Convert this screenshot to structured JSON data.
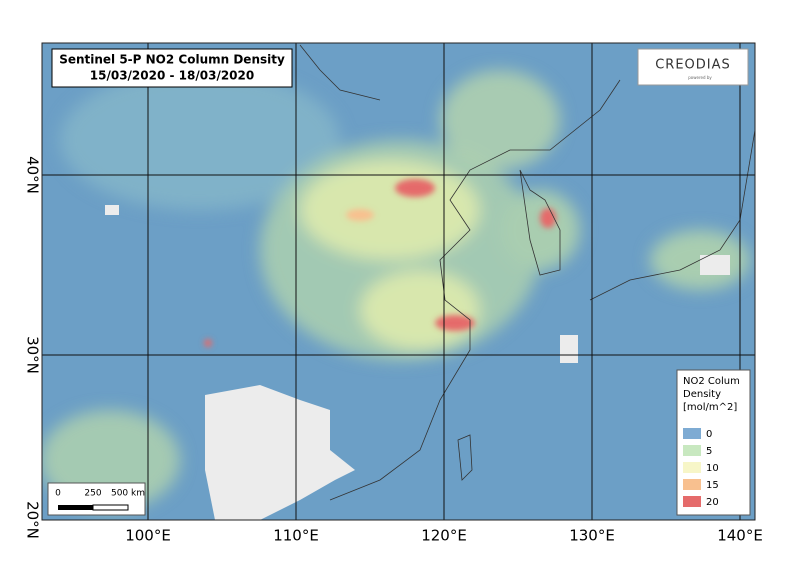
{
  "title": {
    "line1": "Sentinel 5-P NO2 Column Density",
    "line2": "15/03/2020 - 18/03/2020"
  },
  "logo": {
    "name": "CREODIAS",
    "tagline": "powered by"
  },
  "legend": {
    "title": [
      "NO2 Colum",
      "Density",
      "[mol/m^2]"
    ],
    "items": [
      {
        "label": 0,
        "color": "#7eabd3"
      },
      {
        "label": 5,
        "color": "#c8e8c0"
      },
      {
        "label": 10,
        "color": "#f7f6c8"
      },
      {
        "label": 15,
        "color": "#f8c08f"
      },
      {
        "label": 20,
        "color": "#e56b6b"
      }
    ]
  },
  "scale_bar": {
    "labels": [
      "0",
      "250",
      "500 km"
    ]
  },
  "longitude_labels": [
    "100°E",
    "110°E",
    "120°E",
    "130°E",
    "140°E"
  ],
  "latitude_labels": [
    "40°N",
    "30°N",
    "20°N"
  ]
}
